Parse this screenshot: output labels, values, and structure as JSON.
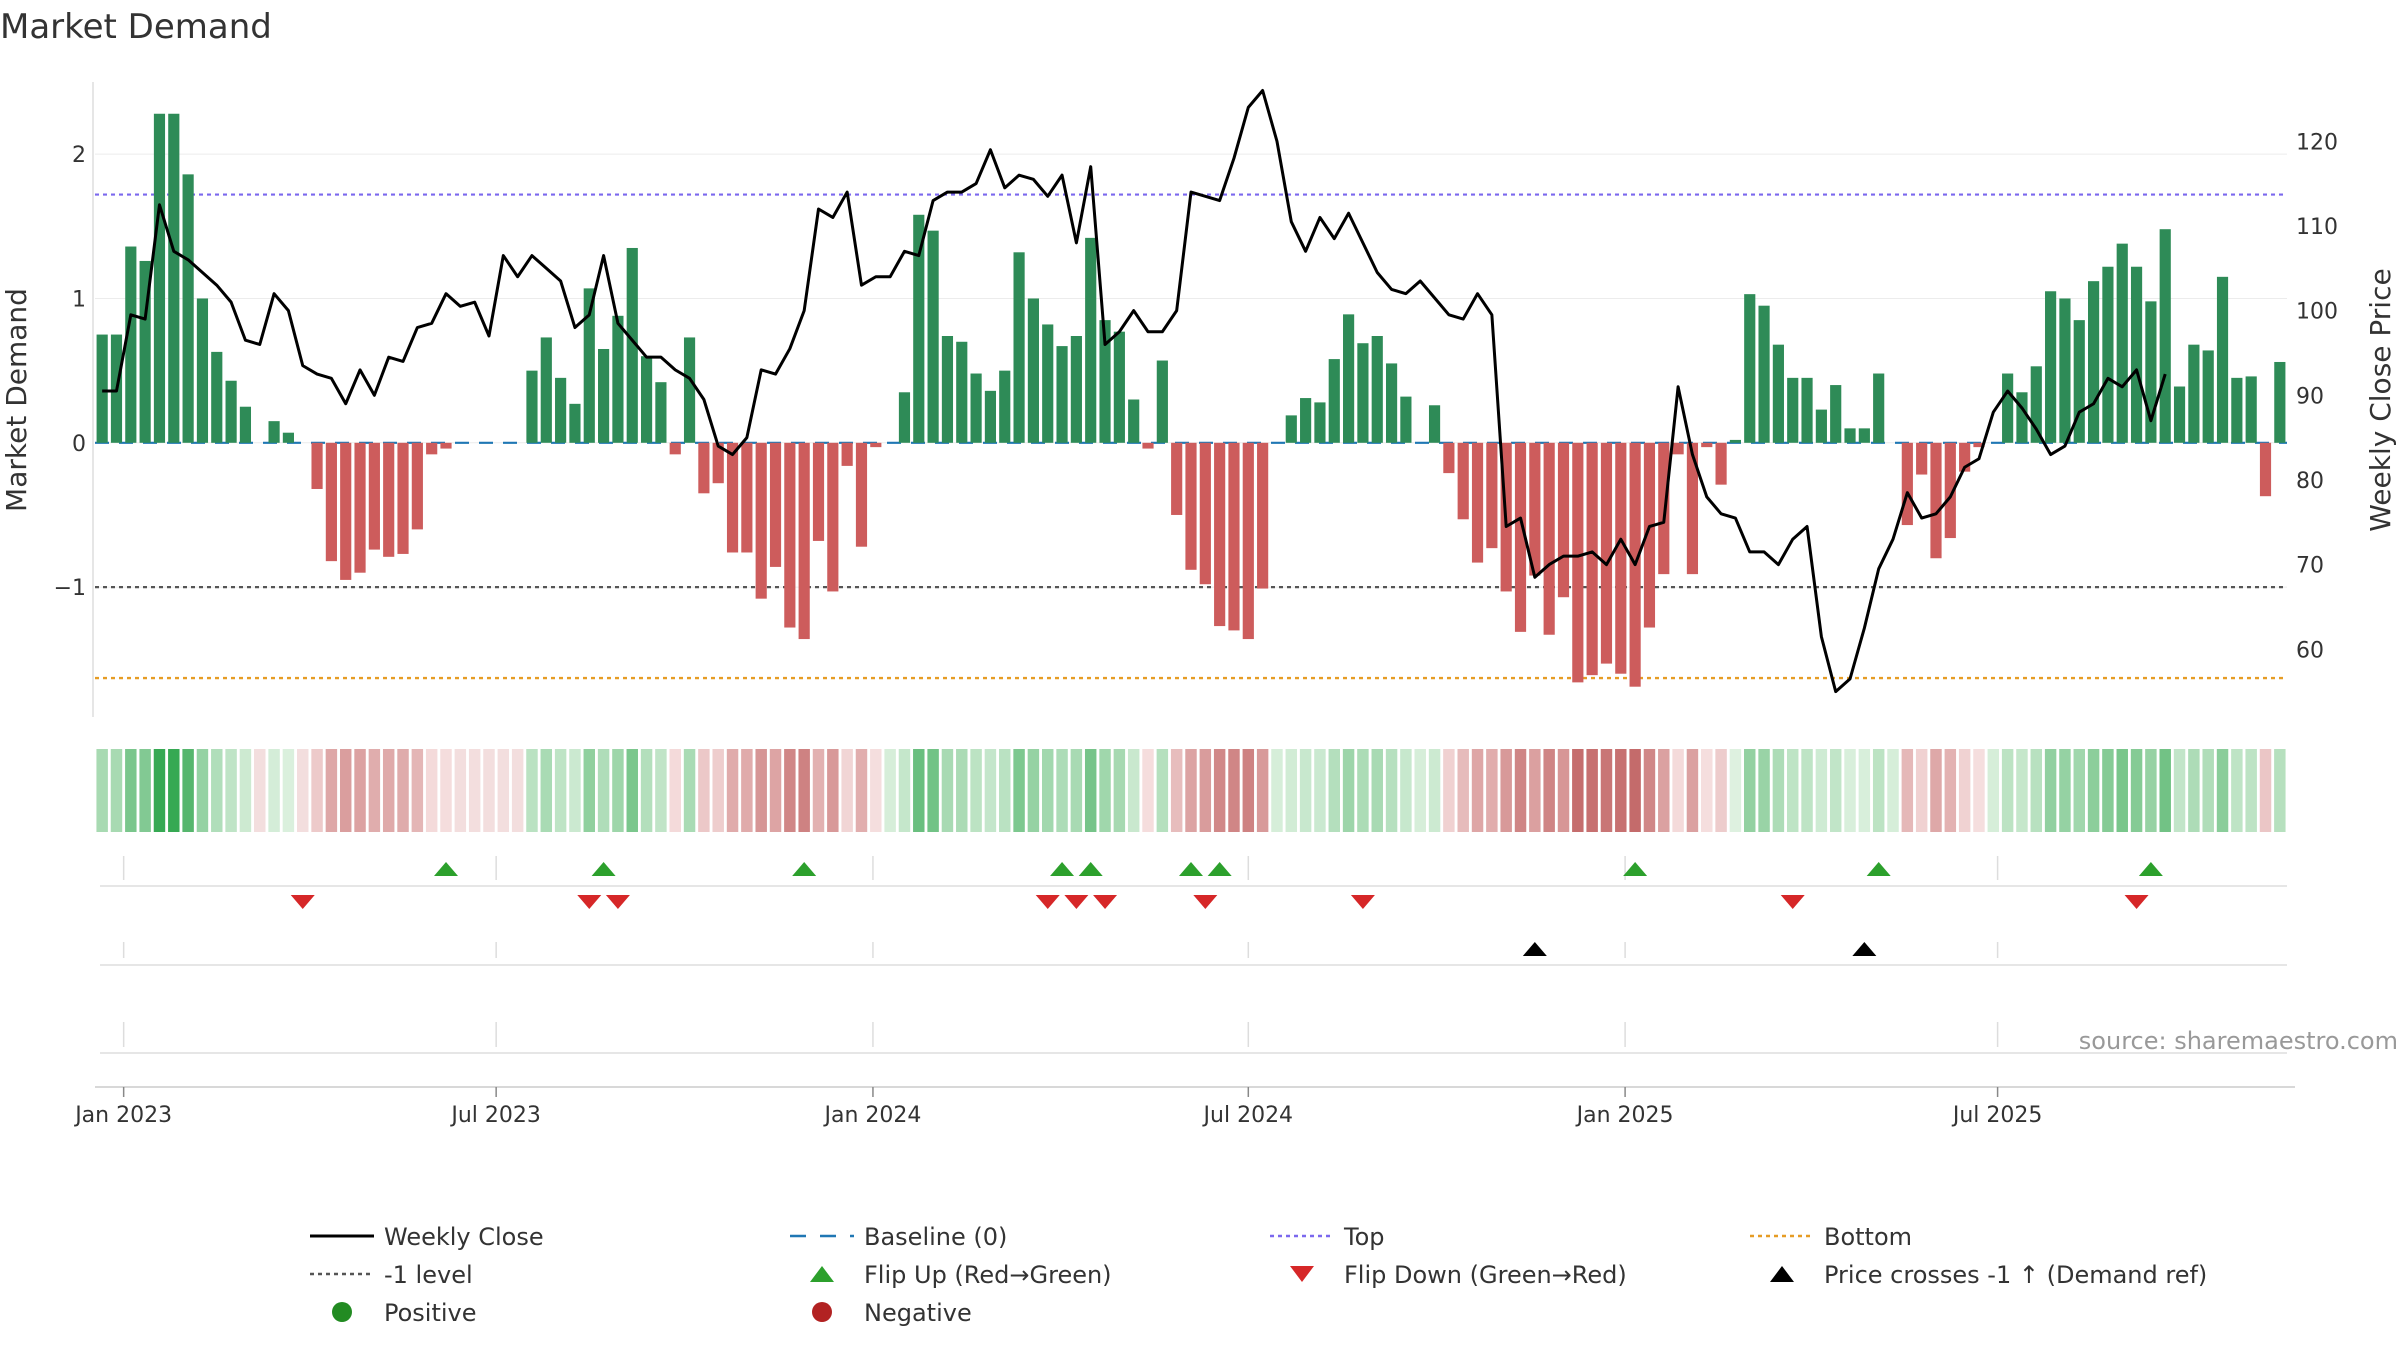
{
  "chart_data": {
    "type": "bar",
    "title": "Market Demand",
    "ylabel": "Market Demand",
    "y2label": "Weekly Close Price",
    "source": "source: sharemaestro.com",
    "ylim": [
      -1.9,
      2.5
    ],
    "y2lim": [
      52,
      127
    ],
    "yticks": [
      {
        "v": 2,
        "label": "2"
      },
      {
        "v": 1,
        "label": "1"
      },
      {
        "v": 0,
        "label": "0"
      },
      {
        "v": -1,
        "label": "−1"
      }
    ],
    "y2ticks": [
      {
        "v": 120,
        "label": "120"
      },
      {
        "v": 110,
        "label": "110"
      },
      {
        "v": 100,
        "label": "100"
      },
      {
        "v": 90,
        "label": "90"
      },
      {
        "v": 80,
        "label": "80"
      },
      {
        "v": 70,
        "label": "70"
      },
      {
        "v": 60,
        "label": "60"
      }
    ],
    "xticks": [
      {
        "week": 1.5,
        "label": "Jan 2023"
      },
      {
        "week": 27.5,
        "label": "Jul 2023"
      },
      {
        "week": 53.8,
        "label": "Jan 2024"
      },
      {
        "week": 80,
        "label": "Jul 2024"
      },
      {
        "week": 106.3,
        "label": "Jan 2025"
      },
      {
        "week": 132.3,
        "label": "Jul 2025"
      }
    ],
    "levels": {
      "top": 1.72,
      "minus_one": -1.0,
      "bottom": -1.63,
      "baseline": 0
    },
    "colors": {
      "positive": "#2e8b57",
      "negative": "#cd5c5c",
      "price": "#000000",
      "baseline": "#1f77b4",
      "top": "#7b68ee",
      "minus_one": "#555555",
      "bottom": "#e69c24",
      "flip_up": "#2ca02c",
      "flip_down": "#d62728",
      "cross": "#000000",
      "legend_positive": "#228b22",
      "legend_negative": "#b22222"
    },
    "demand": [
      0.75,
      0.75,
      1.36,
      1.26,
      2.28,
      2.28,
      1.86,
      1.0,
      0.63,
      0.43,
      0.25,
      0,
      0.15,
      0.07,
      0,
      -0.32,
      -0.82,
      -0.95,
      -0.9,
      -0.74,
      -0.79,
      -0.77,
      -0.6,
      -0.08,
      -0.04,
      0,
      0,
      0,
      0,
      0,
      0.5,
      0.73,
      0.45,
      0.27,
      1.07,
      0.65,
      0.88,
      1.35,
      0.6,
      0.42,
      -0.08,
      0.73,
      -0.35,
      -0.28,
      -0.76,
      -0.76,
      -1.08,
      -0.86,
      -1.28,
      -1.36,
      -0.68,
      -1.03,
      -0.16,
      -0.72,
      -0.03,
      0,
      0.35,
      1.58,
      1.47,
      0.74,
      0.7,
      0.48,
      0.36,
      0.5,
      1.32,
      1.0,
      0.82,
      0.67,
      0.74,
      1.42,
      0.85,
      0.77,
      0.3,
      -0.04,
      0.57,
      -0.5,
      -0.88,
      -0.98,
      -1.27,
      -1.3,
      -1.36,
      -1.01,
      0,
      0.19,
      0.31,
      0.28,
      0.58,
      0.89,
      0.69,
      0.74,
      0.55,
      0.32,
      0,
      0.26,
      -0.21,
      -0.53,
      -0.83,
      -0.73,
      -1.03,
      -1.31,
      -0.92,
      -1.33,
      -1.07,
      -1.66,
      -1.61,
      -1.53,
      -1.6,
      -1.69,
      -1.28,
      -0.91,
      -0.08,
      -0.91,
      -0.03,
      -0.29,
      0.02,
      1.03,
      0.95,
      0.68,
      0.45,
      0.45,
      0.23,
      0.4,
      0.1,
      0.1,
      0.48,
      0,
      -0.57,
      -0.22,
      -0.8,
      -0.66,
      -0.2,
      -0.03,
      0,
      0.48,
      0.35,
      0.53,
      1.05,
      1.0,
      0.85,
      1.12,
      1.22,
      1.38,
      1.22,
      0.98,
      1.48,
      0.39,
      0.68,
      0.64,
      1.15,
      0.45,
      0.46,
      -0.37,
      0.56
    ],
    "price": [
      90.5,
      90.5,
      99.5,
      99,
      112.5,
      107,
      106,
      104.5,
      103,
      101,
      96.5,
      96,
      102,
      100,
      93.5,
      92.5,
      92,
      89,
      93,
      90,
      94.5,
      94,
      98,
      98.5,
      102,
      100.5,
      101,
      97,
      106.5,
      104,
      106.5,
      105,
      103.5,
      98,
      99.5,
      106.5,
      98.5,
      96.5,
      94.5,
      94.5,
      93,
      92,
      89.5,
      84,
      83,
      85,
      93,
      92.5,
      95.5,
      100,
      112,
      111,
      114,
      103,
      104,
      104,
      107,
      106.5,
      113,
      114,
      114,
      115,
      119,
      114.5,
      116,
      115.5,
      113.5,
      116,
      108,
      117,
      96,
      97.5,
      100,
      97.5,
      97.5,
      100,
      114,
      113.5,
      113,
      118,
      124,
      126,
      120,
      110.5,
      107,
      111,
      108.5,
      111.5,
      108,
      104.5,
      102.5,
      102,
      103.5,
      101.5,
      99.5,
      99,
      102,
      99.5,
      74.5,
      75.5,
      68.5,
      70,
      71,
      71,
      71.5,
      70,
      73,
      70,
      74.5,
      75,
      91,
      83,
      78,
      76,
      75.5,
      71.5,
      71.5,
      70,
      73,
      74.5,
      61.5,
      55,
      56.5,
      62.5,
      69.5,
      73,
      78.5,
      75.5,
      76,
      78,
      81.5,
      82.5,
      88,
      90.5,
      88.5,
      86,
      83,
      84,
      88,
      89,
      92,
      91,
      93,
      87,
      92.5
    ],
    "flip_up": [
      24,
      35,
      49,
      67,
      69,
      76,
      78,
      107,
      124,
      143
    ],
    "flip_down": [
      14,
      34,
      36,
      66,
      68,
      70,
      77,
      88,
      118,
      142
    ],
    "cross_up": [
      100,
      123
    ],
    "legend": [
      {
        "label": "Weekly Close",
        "symbol": "line"
      },
      {
        "label": "Baseline (0)",
        "symbol": "dash"
      },
      {
        "label": "Top",
        "symbol": "dot-top"
      },
      {
        "label": "Bottom",
        "symbol": "dot-bottom"
      },
      {
        "label": "-1 level",
        "symbol": "dot-minus"
      },
      {
        "label": "Flip Up (Red→Green)",
        "symbol": "tri-up"
      },
      {
        "label": "Flip Down (Green→Red)",
        "symbol": "tri-down"
      },
      {
        "label": "Price crosses -1 ↑ (Demand ref)",
        "symbol": "tri-cross"
      },
      {
        "label": "Positive",
        "symbol": "dot-pos"
      },
      {
        "label": "Negative",
        "symbol": "dot-neg"
      }
    ]
  }
}
